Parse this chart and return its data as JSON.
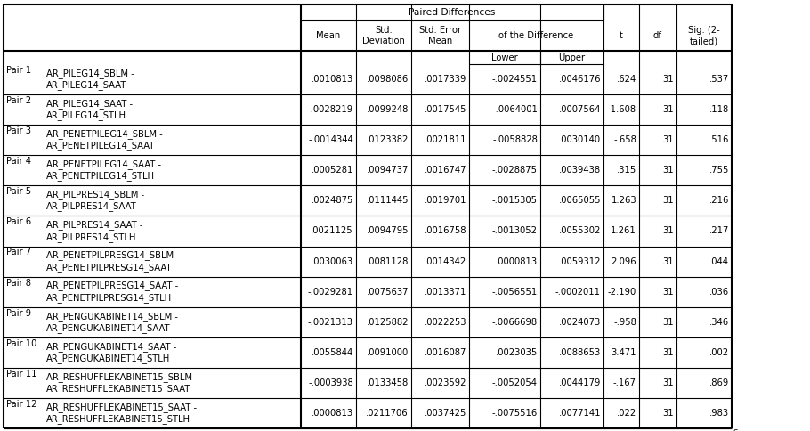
{
  "header1": "Paired Differences",
  "header_mean": "Mean",
  "header_std_dev": "Std.\nDeviation",
  "header_std_err": "Std. Error\nMean",
  "header_otd": "of the Difference",
  "header_lower": "Lower",
  "header_upper": "Upper",
  "header_t": "t",
  "header_df": "df",
  "header_sig": "Sig. (2-\ntailed)",
  "rows": [
    [
      "Pair 1",
      "AR_PILEG14_SBLM -\nAR_PILEG14_SAAT",
      ".0010813",
      ".0098086",
      ".0017339",
      "-.0024551",
      ".0046176",
      ".624",
      "31",
      ".537"
    ],
    [
      "Pair 2",
      "AR_PILEG14_SAAT -\nAR_PILEG14_STLH",
      "-.0028219",
      ".0099248",
      ".0017545",
      "-.0064001",
      ".0007564",
      "-1.608",
      "31",
      ".118"
    ],
    [
      "Pair 3",
      "AR_PENETPILEG14_SBLM -\nAR_PENETPILEG14_SAAT",
      "-.0014344",
      ".0123382",
      ".0021811",
      "-.0058828",
      ".0030140",
      "-.658",
      "31",
      ".516"
    ],
    [
      "Pair 4",
      "AR_PENETPILEG14_SAAT -\nAR_PENETPILEG14_STLH",
      ".0005281",
      ".0094737",
      ".0016747",
      "-.0028875",
      ".0039438",
      ".315",
      "31",
      ".755"
    ],
    [
      "Pair 5",
      "AR_PILPRES14_SBLM -\nAR_PILPRES14_SAAT",
      ".0024875",
      ".0111445",
      ".0019701",
      "-.0015305",
      ".0065055",
      "1.263",
      "31",
      ".216"
    ],
    [
      "Pair 6",
      "AR_PILPRES14_SAAT -\nAR_PILPRES14_STLH",
      ".0021125",
      ".0094795",
      ".0016758",
      "-.0013052",
      ".0055302",
      "1.261",
      "31",
      ".217"
    ],
    [
      "Pair 7",
      "AR_PENETPILPRESG14_SBLM -\nAR_PENETPILPRESG14_SAAT",
      ".0030063",
      ".0081128",
      ".0014342",
      ".0000813",
      ".0059312",
      "2.096",
      "31",
      ".044"
    ],
    [
      "Pair 8",
      "AR_PENETPILPRESG14_SAAT -\nAR_PENETPILPRESG14_STLH",
      "-.0029281",
      ".0075637",
      ".0013371",
      "-.0056551",
      "-.0002011",
      "-2.190",
      "31",
      ".036"
    ],
    [
      "Pair 9",
      "AR_PENGUKABINET14_SBLM -\nAR_PENGUKABINET14_SAAT",
      "-.0021313",
      ".0125882",
      ".0022253",
      "-.0066698",
      ".0024073",
      "-.958",
      "31",
      ".346"
    ],
    [
      "Pair 10",
      "AR_PENGUKABINET14_SAAT -\nAR_PENGUKABINET14_STLH",
      ".0055844",
      ".0091000",
      ".0016087",
      ".0023035",
      ".0088653",
      "3.471",
      "31",
      ".002"
    ],
    [
      "Pair 11",
      "AR_RESHUFFLEKABINET15_SBLM -\nAR_RESHUFFLEKABINET15_SAAT",
      "-.0003938",
      ".0133458",
      ".0023592",
      "-.0052054",
      ".0044179",
      "-.167",
      "31",
      ".869"
    ],
    [
      "Pair 12",
      "AR_RESHUFFLEKABINET15_SAAT -\nAR_RESHUFFLEKABINET15_STLH",
      ".0000813",
      ".0211706",
      ".0037425",
      "-.0075516",
      ".0077141",
      ".022",
      "31",
      ".983"
    ]
  ],
  "bg_color": "#ffffff",
  "line_color": "#000000",
  "text_color": "#000000",
  "font_size": 7.2,
  "font_family": "DejaVu Sans"
}
